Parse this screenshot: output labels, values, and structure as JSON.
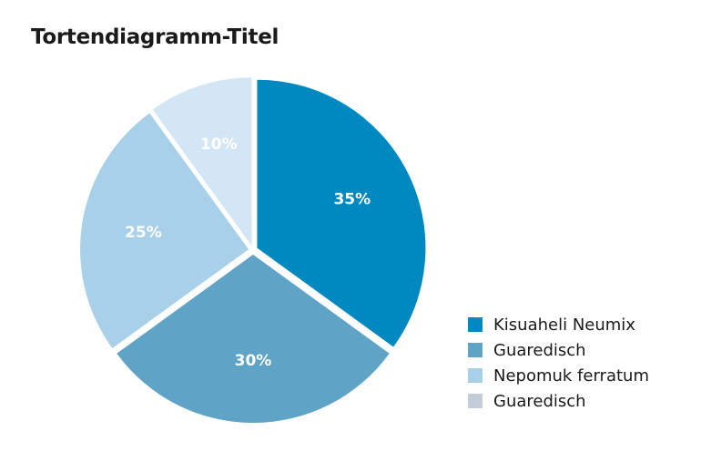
{
  "chart_data": {
    "type": "pie",
    "title": "Tortendiagramm-Titel",
    "series": [
      {
        "name": "",
        "values": [
          35,
          30,
          25,
          10
        ]
      }
    ],
    "slices": [
      {
        "legend": "Kisuaheli Neumix",
        "value": 35,
        "label": "35%",
        "color": "#0089c0",
        "label_color": "#ffffff"
      },
      {
        "legend": "Guaredisch",
        "value": 30,
        "label": "30%",
        "color": "#5fa3c6",
        "label_color": "#ffffff"
      },
      {
        "legend": "Nepomuk ferratum",
        "value": 25,
        "label": "25%",
        "color": "#a8d1e9",
        "label_color": "#ffffff"
      },
      {
        "legend": "Guaredisch",
        "value": 10,
        "label": "10%",
        "color": "#d3e6f5",
        "label_color": "#ffffff"
      }
    ],
    "legend_entries": [
      {
        "label": "Kisuaheli Neumix",
        "color": "#0089c0"
      },
      {
        "label": "Guaredisch",
        "color": "#5fa3c6"
      },
      {
        "label": "Nepomuk ferratum",
        "color": "#a8d1e9"
      },
      {
        "label": "Guaredisch",
        "color": "#c3cdd8"
      }
    ],
    "legend_position": "bottom-right",
    "start": "top",
    "direction": "clockwise"
  }
}
